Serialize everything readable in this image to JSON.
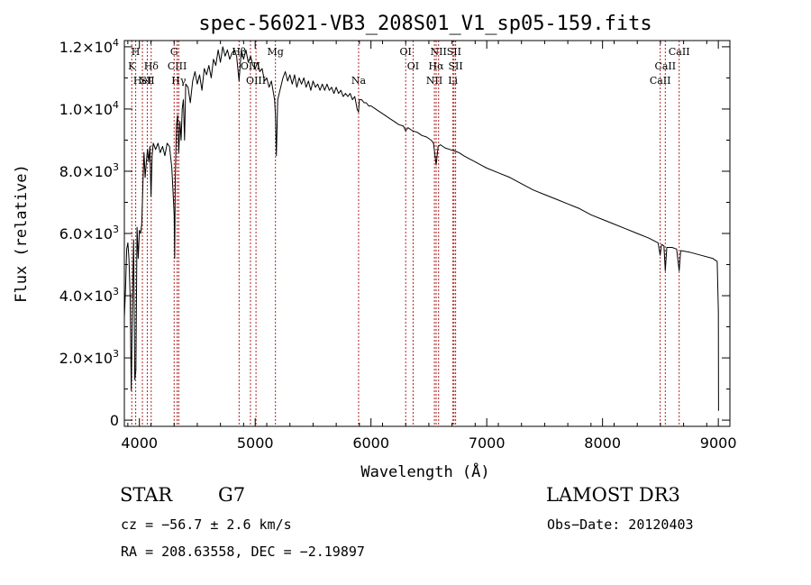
{
  "chart_data": {
    "type": "line",
    "title": "spec-56021-VB3_208S01_V1_sp05-159.fits",
    "xlabel": "Wavelength (Å)",
    "ylabel": "Flux (relative)",
    "xlim": [
      3870,
      9100
    ],
    "ylim": [
      -200,
      12200
    ],
    "x_ticks": [
      {
        "value": 4000,
        "label": "4000"
      },
      {
        "value": 5000,
        "label": "5000"
      },
      {
        "value": 6000,
        "label": "6000"
      },
      {
        "value": 7000,
        "label": "7000"
      },
      {
        "value": 8000,
        "label": "8000"
      },
      {
        "value": 9000,
        "label": "9000"
      }
    ],
    "y_ticks": [
      {
        "value": 0,
        "mant": "0",
        "exp": ""
      },
      {
        "value": 2000,
        "mant": "2.0×10",
        "exp": "3"
      },
      {
        "value": 4000,
        "mant": "4.0×10",
        "exp": "3"
      },
      {
        "value": 6000,
        "mant": "6.0×10",
        "exp": "3"
      },
      {
        "value": 8000,
        "mant": "8.0×10",
        "exp": "3"
      },
      {
        "value": 10000,
        "mant": "1.0×10",
        "exp": "4"
      },
      {
        "value": 12000,
        "mant": "1.2×10",
        "exp": "4"
      }
    ],
    "line_color": "#000000",
    "marker_color": "#b22222",
    "series": [
      {
        "name": "flux",
        "points": [
          [
            3870,
            3300
          ],
          [
            3880,
            4200
          ],
          [
            3890,
            5500
          ],
          [
            3900,
            5700
          ],
          [
            3910,
            5200
          ],
          [
            3920,
            4000
          ],
          [
            3930,
            950
          ],
          [
            3940,
            3800
          ],
          [
            3950,
            5800
          ],
          [
            3960,
            1300
          ],
          [
            3970,
            1600
          ],
          [
            3980,
            6200
          ],
          [
            3990,
            5200
          ],
          [
            4000,
            6100
          ],
          [
            4010,
            6000
          ],
          [
            4020,
            6300
          ],
          [
            4030,
            7600
          ],
          [
            4040,
            8600
          ],
          [
            4050,
            7800
          ],
          [
            4060,
            8300
          ],
          [
            4070,
            8700
          ],
          [
            4080,
            8300
          ],
          [
            4090,
            8800
          ],
          [
            4100,
            7200
          ],
          [
            4110,
            8500
          ],
          [
            4120,
            8900
          ],
          [
            4140,
            8700
          ],
          [
            4160,
            8900
          ],
          [
            4180,
            8600
          ],
          [
            4200,
            8800
          ],
          [
            4220,
            8500
          ],
          [
            4240,
            8900
          ],
          [
            4260,
            8800
          ],
          [
            4280,
            8100
          ],
          [
            4300,
            6600
          ],
          [
            4305,
            5200
          ],
          [
            4310,
            7700
          ],
          [
            4320,
            9500
          ],
          [
            4330,
            9800
          ],
          [
            4340,
            8600
          ],
          [
            4350,
            9600
          ],
          [
            4360,
            9000
          ],
          [
            4370,
            10000
          ],
          [
            4380,
            10300
          ],
          [
            4390,
            9000
          ],
          [
            4400,
            10800
          ],
          [
            4420,
            10700
          ],
          [
            4440,
            10200
          ],
          [
            4460,
            10900
          ],
          [
            4480,
            11200
          ],
          [
            4500,
            10800
          ],
          [
            4520,
            11100
          ],
          [
            4540,
            10600
          ],
          [
            4560,
            11300
          ],
          [
            4580,
            11100
          ],
          [
            4600,
            11400
          ],
          [
            4620,
            11000
          ],
          [
            4640,
            11600
          ],
          [
            4660,
            11400
          ],
          [
            4680,
            11900
          ],
          [
            4700,
            11500
          ],
          [
            4720,
            12000
          ],
          [
            4740,
            11700
          ],
          [
            4760,
            11900
          ],
          [
            4780,
            11600
          ],
          [
            4800,
            11800
          ],
          [
            4820,
            11900
          ],
          [
            4840,
            11700
          ],
          [
            4861,
            10900
          ],
          [
            4880,
            11900
          ],
          [
            4900,
            11600
          ],
          [
            4920,
            11900
          ],
          [
            4940,
            11500
          ],
          [
            4960,
            11700
          ],
          [
            4980,
            11400
          ],
          [
            5000,
            11300
          ],
          [
            5020,
            11500
          ],
          [
            5040,
            11200
          ],
          [
            5060,
            11300
          ],
          [
            5080,
            10900
          ],
          [
            5100,
            11000
          ],
          [
            5120,
            10700
          ],
          [
            5140,
            10900
          ],
          [
            5167,
            10300
          ],
          [
            5175,
            9800
          ],
          [
            5183,
            8500
          ],
          [
            5195,
            10300
          ],
          [
            5220,
            10700
          ],
          [
            5240,
            11000
          ],
          [
            5260,
            11200
          ],
          [
            5280,
            10900
          ],
          [
            5300,
            11100
          ],
          [
            5320,
            10800
          ],
          [
            5340,
            11100
          ],
          [
            5360,
            10700
          ],
          [
            5380,
            11000
          ],
          [
            5400,
            10800
          ],
          [
            5420,
            11000
          ],
          [
            5440,
            10700
          ],
          [
            5460,
            10900
          ],
          [
            5480,
            10600
          ],
          [
            5500,
            10900
          ],
          [
            5520,
            10700
          ],
          [
            5540,
            10800
          ],
          [
            5560,
            10600
          ],
          [
            5580,
            10800
          ],
          [
            5600,
            10600
          ],
          [
            5620,
            10800
          ],
          [
            5640,
            10600
          ],
          [
            5660,
            10700
          ],
          [
            5680,
            10500
          ],
          [
            5700,
            10700
          ],
          [
            5720,
            10500
          ],
          [
            5740,
            10600
          ],
          [
            5760,
            10400
          ],
          [
            5780,
            10500
          ],
          [
            5800,
            10400
          ],
          [
            5820,
            10500
          ],
          [
            5840,
            10300
          ],
          [
            5860,
            10400
          ],
          [
            5880,
            10000
          ],
          [
            5893,
            9900
          ],
          [
            5900,
            10300
          ],
          [
            5920,
            10300
          ],
          [
            5940,
            10200
          ],
          [
            5960,
            10200
          ],
          [
            5980,
            10100
          ],
          [
            6000,
            10100
          ],
          [
            6040,
            10000
          ],
          [
            6080,
            9900
          ],
          [
            6120,
            9800
          ],
          [
            6160,
            9700
          ],
          [
            6200,
            9600
          ],
          [
            6240,
            9500
          ],
          [
            6280,
            9450
          ],
          [
            6300,
            9300
          ],
          [
            6320,
            9400
          ],
          [
            6360,
            9300
          ],
          [
            6400,
            9250
          ],
          [
            6440,
            9150
          ],
          [
            6480,
            9100
          ],
          [
            6520,
            9000
          ],
          [
            6540,
            8900
          ],
          [
            6563,
            8200
          ],
          [
            6580,
            8800
          ],
          [
            6600,
            8850
          ],
          [
            6640,
            8750
          ],
          [
            6680,
            8700
          ],
          [
            6720,
            8650
          ],
          [
            6760,
            8600
          ],
          [
            6800,
            8500
          ],
          [
            6850,
            8400
          ],
          [
            6900,
            8300
          ],
          [
            6950,
            8200
          ],
          [
            7000,
            8100
          ],
          [
            7100,
            7950
          ],
          [
            7200,
            7800
          ],
          [
            7300,
            7600
          ],
          [
            7400,
            7400
          ],
          [
            7500,
            7250
          ],
          [
            7600,
            7100
          ],
          [
            7700,
            6950
          ],
          [
            7800,
            6800
          ],
          [
            7900,
            6600
          ],
          [
            8000,
            6450
          ],
          [
            8100,
            6300
          ],
          [
            8200,
            6150
          ],
          [
            8300,
            6000
          ],
          [
            8400,
            5850
          ],
          [
            8480,
            5700
          ],
          [
            8498,
            5300
          ],
          [
            8510,
            5650
          ],
          [
            8530,
            5600
          ],
          [
            8542,
            4800
          ],
          [
            8555,
            5550
          ],
          [
            8600,
            5550
          ],
          [
            8640,
            5500
          ],
          [
            8662,
            4800
          ],
          [
            8675,
            5450
          ],
          [
            8750,
            5400
          ],
          [
            8850,
            5300
          ],
          [
            8950,
            5200
          ],
          [
            8990,
            5100
          ],
          [
            9000,
            3500
          ],
          [
            9002,
            300
          ]
        ]
      }
    ],
    "lines": [
      {
        "wave": 3934,
        "label": "K",
        "row": 1
      },
      {
        "wave": 3968,
        "label": "H",
        "row": 0
      },
      {
        "wave": 4026,
        "label": "HeI",
        "row": 2
      },
      {
        "wave": 4068,
        "label": "SII",
        "row": 2
      },
      {
        "wave": 4102,
        "label": "Hδ",
        "row": 1
      },
      {
        "wave": 4300,
        "label": "G",
        "row": 0
      },
      {
        "wave": 4326,
        "label": "CIII",
        "row": 1
      },
      {
        "wave": 4340,
        "label": "Hγ",
        "row": 2
      },
      {
        "wave": 4861,
        "label": "Hβ",
        "row": 0
      },
      {
        "wave": 4959,
        "label": "OIII",
        "row": 1
      },
      {
        "wave": 5007,
        "label": "OIII",
        "row": 2
      },
      {
        "wave": 5175,
        "label": "Mg",
        "row": 0
      },
      {
        "wave": 5893,
        "label": "Na",
        "row": 2
      },
      {
        "wave": 6300,
        "label": "OI",
        "row": 0
      },
      {
        "wave": 6364,
        "label": "OI",
        "row": 1
      },
      {
        "wave": 6548,
        "label": "NII",
        "row": 2
      },
      {
        "wave": 6563,
        "label": "Hα",
        "row": 1
      },
      {
        "wave": 6584,
        "label": "NII",
        "row": 0
      },
      {
        "wave": 6708,
        "label": "Li",
        "row": 2
      },
      {
        "wave": 6717,
        "label": "SII",
        "row": 0
      },
      {
        "wave": 6731,
        "label": "SII",
        "row": 1
      },
      {
        "wave": 8498,
        "label": "CaII",
        "row": 2
      },
      {
        "wave": 8542,
        "label": "CaII",
        "row": 1
      },
      {
        "wave": 8662,
        "label": "CaII",
        "row": 0
      }
    ]
  },
  "info": {
    "object_class": "STAR",
    "subclass": "G7",
    "survey": "LAMOST DR3",
    "cz": "cz = −56.7 ± 2.6 km/s",
    "obs_date": "Obs−Date: 20120403",
    "coords": "RA = 208.63558, DEC =  −2.19897"
  }
}
